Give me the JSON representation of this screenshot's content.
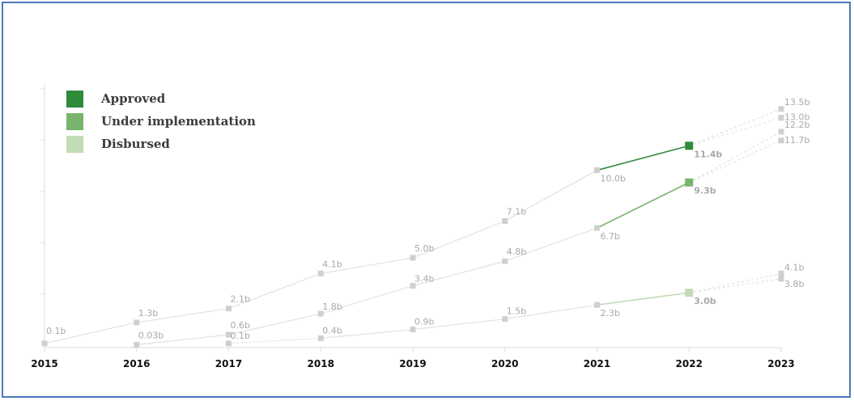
{
  "colors": {
    "approved": "#2e8b3a",
    "under_implementation": "#78b46c",
    "disbursed": "#c3dcb4",
    "muted_line": "#e2e2e2",
    "muted_marker": "#cfcfcf",
    "muted_label": "#a9a9a9",
    "frame_border": "#4a78b8"
  },
  "legend": [
    {
      "label": "Approved",
      "color": "#2e8b3a"
    },
    {
      "label": "Under implementation",
      "color": "#78b46c"
    },
    {
      "label": "Disbursed",
      "color": "#c3dcb4"
    }
  ],
  "chart_data": {
    "type": "line",
    "categories": [
      "2015",
      "2016",
      "2017",
      "2018",
      "2019",
      "2020",
      "2021",
      "2022",
      "2023"
    ],
    "ylim": [
      0,
      14
    ],
    "grid": false,
    "legend_position": "top-left",
    "series": [
      {
        "name": "Approved",
        "values": [
          0.1,
          1.3,
          2.1,
          4.1,
          5.0,
          7.1,
          10.0,
          11.4,
          null
        ],
        "labels": [
          "0.1b",
          "1.3b",
          "2.1b",
          "4.1b",
          "5.0b",
          "7.1b",
          "10.0b",
          "11.4b",
          null
        ],
        "highlight_index": 7,
        "projection_2023": [
          {
            "value": 13.5,
            "label": "13.5b"
          },
          {
            "value": 13.0,
            "label": "13.0b"
          }
        ]
      },
      {
        "name": "Under implementation",
        "values": [
          null,
          0.03,
          0.6,
          1.8,
          3.4,
          4.8,
          6.7,
          9.3,
          null
        ],
        "labels": [
          null,
          "0.03b",
          "0.6b",
          "1.8b",
          "3.4b",
          "4.8b",
          "6.7b",
          "9.3b",
          null
        ],
        "highlight_index": 7,
        "projection_2023": [
          {
            "value": 12.2,
            "label": "12.2b"
          },
          {
            "value": 11.7,
            "label": "11.7b"
          }
        ]
      },
      {
        "name": "Disbursed",
        "values": [
          null,
          null,
          0.1,
          0.4,
          0.9,
          1.5,
          2.3,
          3.0,
          null
        ],
        "labels": [
          null,
          null,
          "0.1b",
          "0.4b",
          "0.9b",
          "1.5b",
          "2.3b",
          "3.0b",
          null
        ],
        "highlight_index": 7,
        "projection_2023": [
          {
            "value": 4.1,
            "label": "4.1b"
          },
          {
            "value": 3.8,
            "label": "3.8b"
          }
        ]
      }
    ]
  }
}
